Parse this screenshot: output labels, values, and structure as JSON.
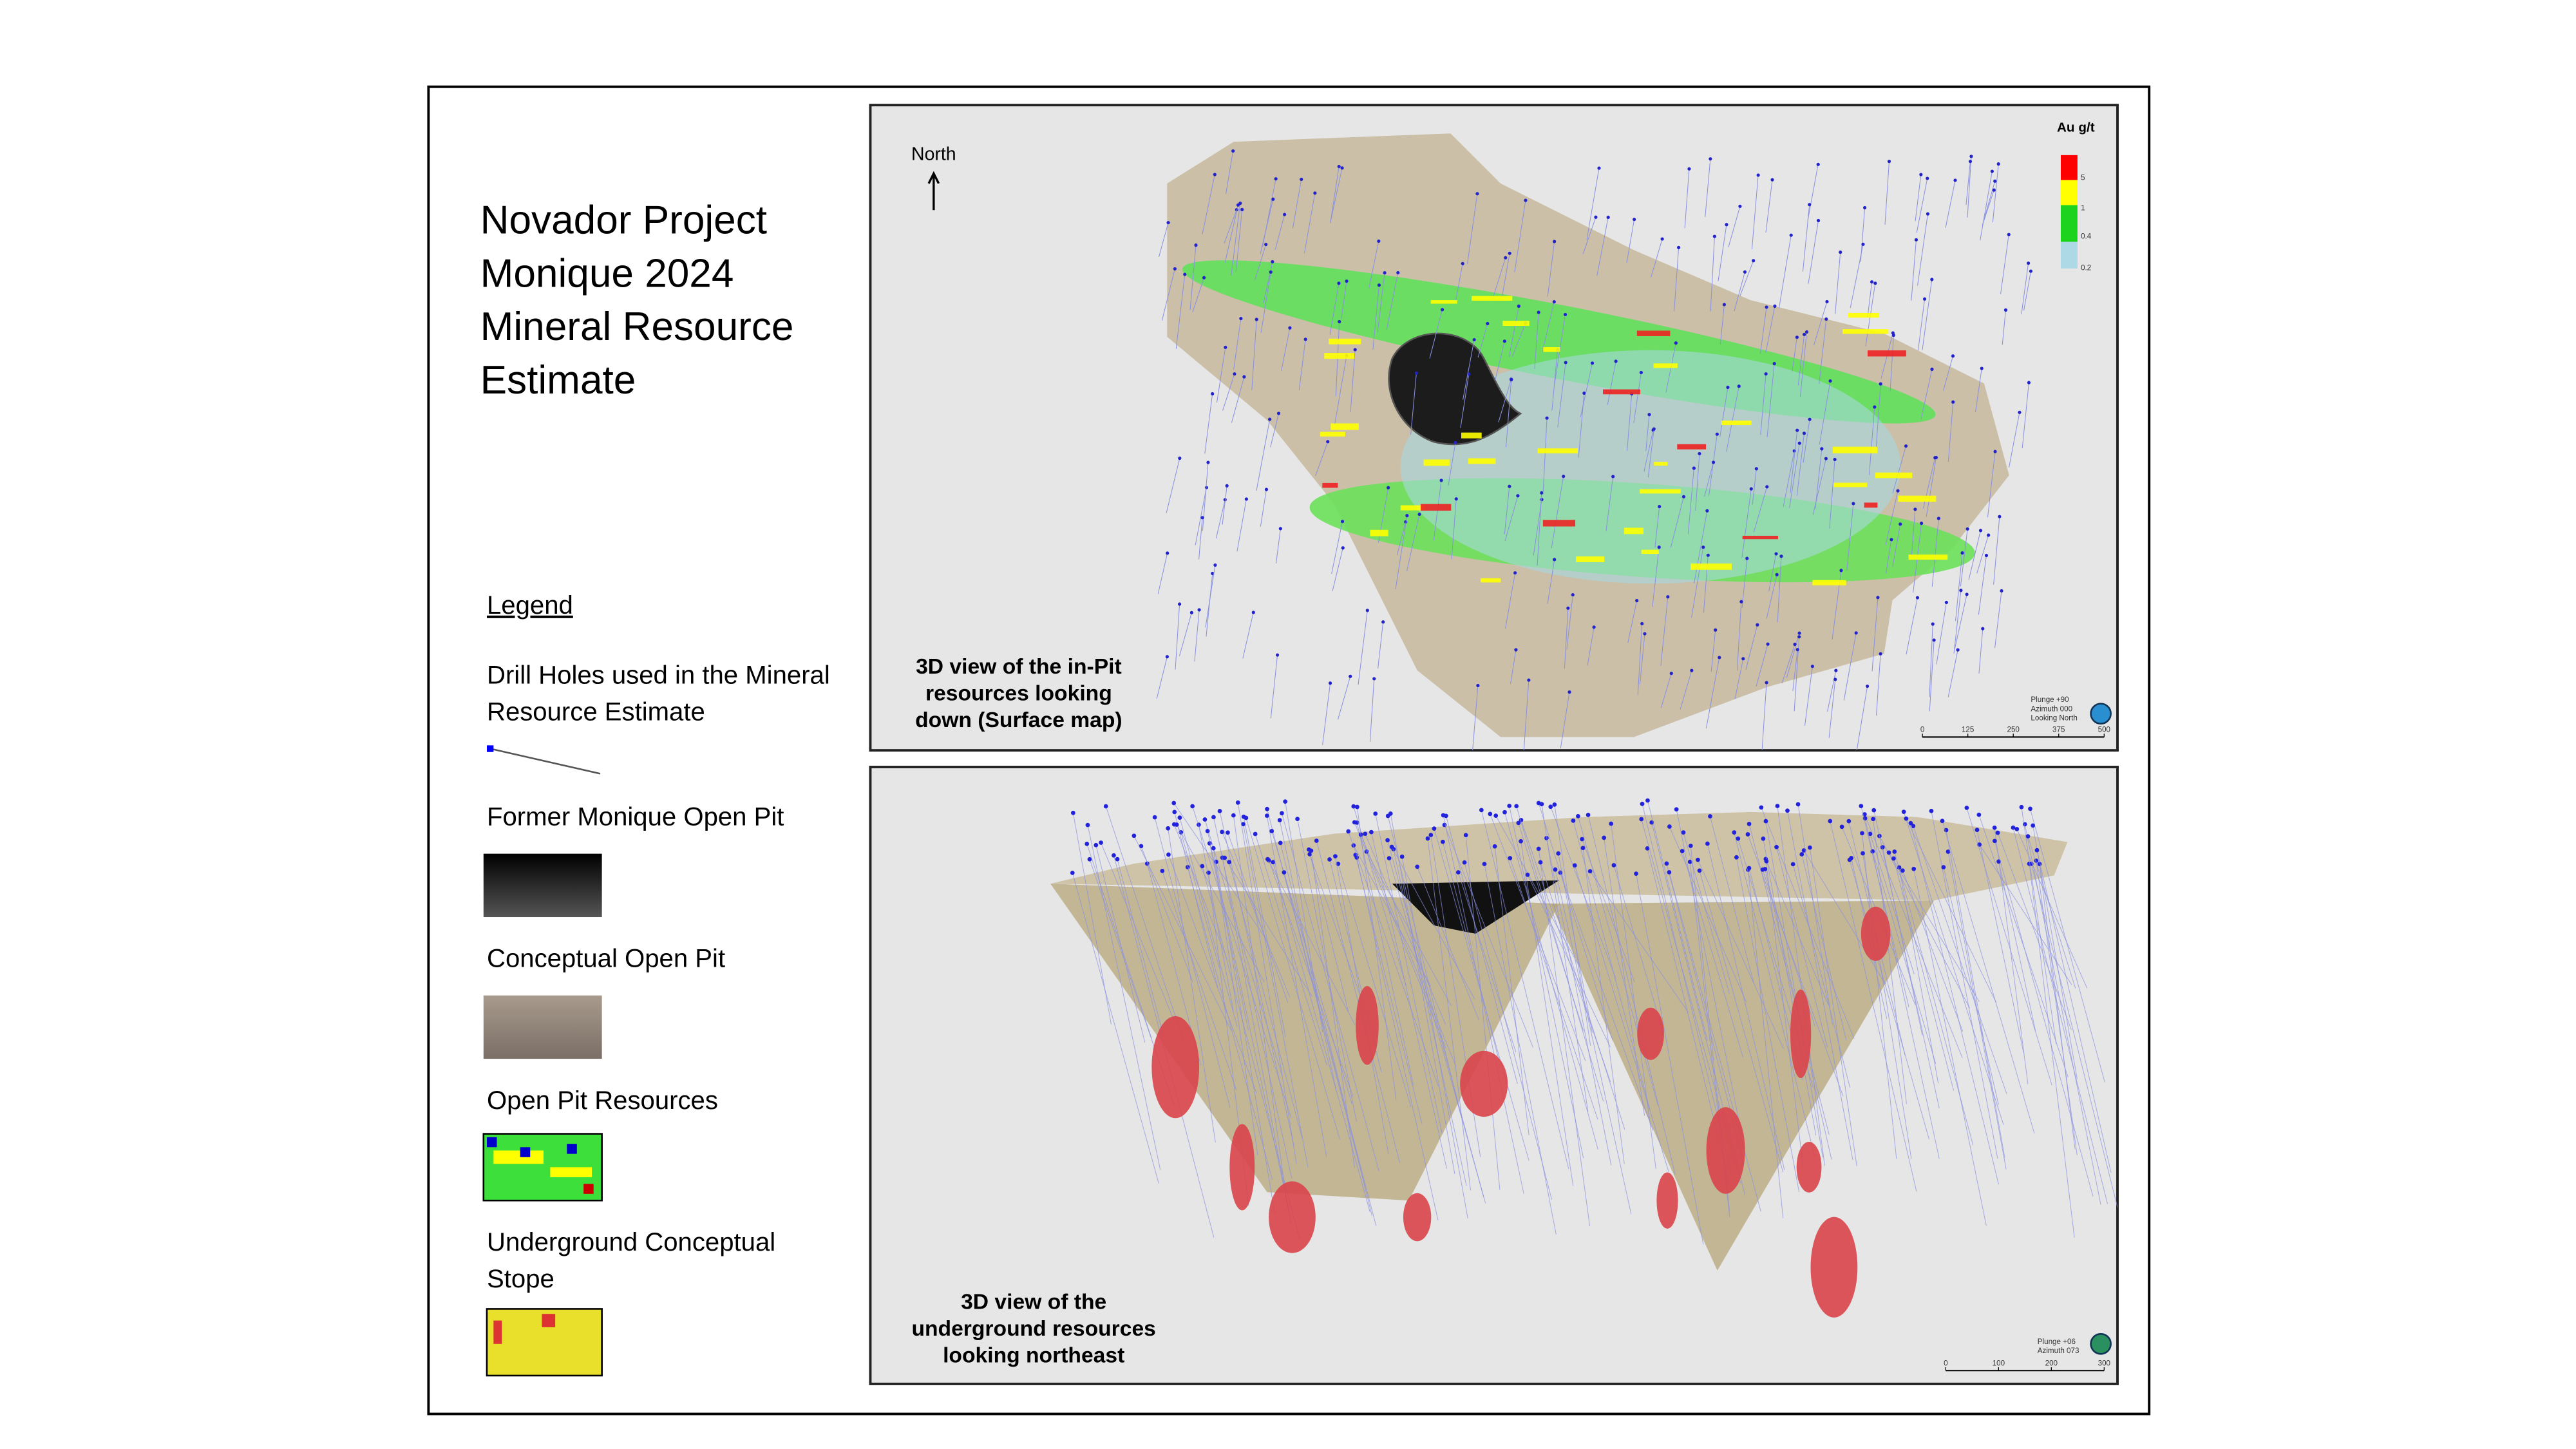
{
  "title": [
    "Novador  Project",
    "Monique 2024",
    "Mineral Resource",
    "Estimate"
  ],
  "legend": {
    "heading": "Legend",
    "items": [
      {
        "label": [
          "Drill Holes used in the Mineral",
          "Resource Estimate"
        ]
      },
      {
        "label": [
          "Former Monique Open Pit"
        ]
      },
      {
        "label": [
          "Conceptual Open Pit"
        ]
      },
      {
        "label": [
          "Open Pit Resources"
        ]
      },
      {
        "label": [
          "Underground Conceptual",
          "Stope"
        ]
      }
    ]
  },
  "top_view": {
    "north": "North",
    "scale_title": "Au g/t",
    "scale_labels": [
      "5",
      "1",
      "0.4",
      "0.2"
    ],
    "caption": [
      "3D view of the in-Pit",
      "resources looking",
      "down (Surface map)"
    ],
    "orientation": [
      "Plunge +90",
      "Azimuth 000",
      "Looking North"
    ],
    "scale_bar": [
      "0",
      "125",
      "250",
      "375",
      "500"
    ]
  },
  "bottom_view": {
    "caption": [
      "3D view of the",
      "underground resources",
      "looking northeast"
    ],
    "orientation": [
      "Plunge +06",
      "Azimuth 073"
    ],
    "scale_bar": [
      "0",
      "100",
      "200",
      "300"
    ]
  }
}
